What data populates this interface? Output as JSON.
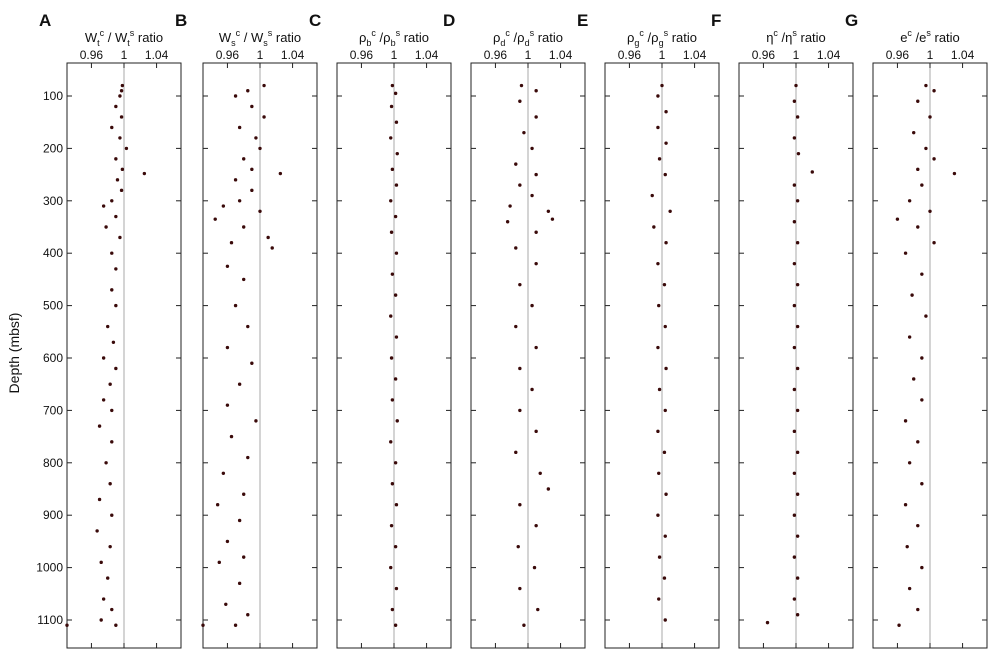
{
  "chart_data": {
    "type": "scatter",
    "ylabel": "Depth (mbsf)",
    "y_reversed": true,
    "ylim": [
      50,
      1125
    ],
    "yticks": [
      100,
      200,
      300,
      400,
      500,
      600,
      700,
      800,
      900,
      1000,
      1100
    ],
    "xlim": [
      0.93,
      1.07
    ],
    "xticks": [
      0.96,
      1,
      1.04
    ],
    "xtick_labels": [
      "0.96",
      "1",
      "1.04"
    ],
    "reference_line": 1,
    "point_color": "#3a0a0a",
    "panels": [
      {
        "letter": "A",
        "title": {
          "b1": "W",
          "sub1": "t",
          "sup1": "c",
          "mid": "/ W",
          "sub2": "t",
          "sup2": "s",
          "tail": " ratio"
        },
        "points": [
          [
            0.998,
            80
          ],
          [
            0.997,
            90
          ],
          [
            0.995,
            100
          ],
          [
            0.99,
            120
          ],
          [
            0.997,
            140
          ],
          [
            0.985,
            160
          ],
          [
            0.995,
            180
          ],
          [
            1.003,
            200
          ],
          [
            0.99,
            220
          ],
          [
            0.998,
            240
          ],
          [
            1.025,
            248
          ],
          [
            0.992,
            260
          ],
          [
            0.997,
            280
          ],
          [
            0.985,
            300
          ],
          [
            0.975,
            310
          ],
          [
            0.99,
            330
          ],
          [
            0.978,
            350
          ],
          [
            0.995,
            370
          ],
          [
            0.985,
            400
          ],
          [
            0.99,
            430
          ],
          [
            0.985,
            470
          ],
          [
            0.99,
            500
          ],
          [
            0.98,
            540
          ],
          [
            0.987,
            570
          ],
          [
            0.975,
            600
          ],
          [
            0.99,
            620
          ],
          [
            0.983,
            650
          ],
          [
            0.975,
            680
          ],
          [
            0.985,
            700
          ],
          [
            0.97,
            730
          ],
          [
            0.985,
            760
          ],
          [
            0.978,
            800
          ],
          [
            0.983,
            840
          ],
          [
            0.97,
            870
          ],
          [
            0.985,
            900
          ],
          [
            0.967,
            930
          ],
          [
            0.983,
            960
          ],
          [
            0.972,
            990
          ],
          [
            0.98,
            1020
          ],
          [
            0.975,
            1060
          ],
          [
            0.985,
            1080
          ],
          [
            0.972,
            1100
          ],
          [
            0.99,
            1110
          ],
          [
            0.93,
            1110
          ]
        ]
      },
      {
        "letter": "B",
        "title": {
          "b1": "W",
          "sub1": "s",
          "sup1": "c",
          "mid": "/ W",
          "sub2": "s",
          "sup2": "s",
          "tail": " ratio"
        },
        "points": [
          [
            1.005,
            80
          ],
          [
            0.985,
            90
          ],
          [
            0.97,
            100
          ],
          [
            0.99,
            120
          ],
          [
            1.005,
            140
          ],
          [
            0.975,
            160
          ],
          [
            0.995,
            180
          ],
          [
            1.0,
            200
          ],
          [
            0.98,
            220
          ],
          [
            0.99,
            240
          ],
          [
            1.025,
            248
          ],
          [
            0.97,
            260
          ],
          [
            0.99,
            280
          ],
          [
            0.975,
            300
          ],
          [
            0.955,
            310
          ],
          [
            1.0,
            320
          ],
          [
            0.945,
            335
          ],
          [
            0.98,
            350
          ],
          [
            1.01,
            370
          ],
          [
            0.965,
            380
          ],
          [
            1.015,
            390
          ],
          [
            0.96,
            425
          ],
          [
            0.98,
            450
          ],
          [
            0.97,
            500
          ],
          [
            0.985,
            540
          ],
          [
            0.96,
            580
          ],
          [
            0.99,
            610
          ],
          [
            0.975,
            650
          ],
          [
            0.96,
            690
          ],
          [
            0.995,
            720
          ],
          [
            0.965,
            750
          ],
          [
            0.985,
            790
          ],
          [
            0.955,
            820
          ],
          [
            0.98,
            860
          ],
          [
            0.948,
            880
          ],
          [
            0.975,
            910
          ],
          [
            0.96,
            950
          ],
          [
            0.98,
            980
          ],
          [
            0.95,
            990
          ],
          [
            0.975,
            1030
          ],
          [
            0.958,
            1070
          ],
          [
            0.985,
            1090
          ],
          [
            0.97,
            1110
          ],
          [
            0.93,
            1110
          ]
        ]
      },
      {
        "letter": "C",
        "title": {
          "b1": "ρ",
          "sub1": "b",
          "sup1": "c",
          "mid": "/ρ",
          "sub2": "b",
          "sup2": "s",
          "tail": " ratio"
        },
        "points": [
          [
            0.998,
            80
          ],
          [
            1.002,
            95
          ],
          [
            0.997,
            120
          ],
          [
            1.003,
            150
          ],
          [
            0.996,
            180
          ],
          [
            1.004,
            210
          ],
          [
            0.998,
            240
          ],
          [
            1.003,
            270
          ],
          [
            0.996,
            300
          ],
          [
            1.002,
            330
          ],
          [
            0.997,
            360
          ],
          [
            1.003,
            400
          ],
          [
            0.998,
            440
          ],
          [
            1.002,
            480
          ],
          [
            0.996,
            520
          ],
          [
            1.003,
            560
          ],
          [
            0.997,
            600
          ],
          [
            1.002,
            640
          ],
          [
            0.998,
            680
          ],
          [
            1.004,
            720
          ],
          [
            0.996,
            760
          ],
          [
            1.002,
            800
          ],
          [
            0.998,
            840
          ],
          [
            1.003,
            880
          ],
          [
            0.997,
            920
          ],
          [
            1.002,
            960
          ],
          [
            0.996,
            1000
          ],
          [
            1.003,
            1040
          ],
          [
            0.998,
            1080
          ],
          [
            1.002,
            1110
          ]
        ]
      },
      {
        "letter": "D",
        "title": {
          "b1": "ρ",
          "sub1": "d",
          "sup1": "c",
          "mid": "/ρ",
          "sub2": "d",
          "sup2": "s",
          "tail": " ratio"
        },
        "points": [
          [
            0.992,
            80
          ],
          [
            1.01,
            90
          ],
          [
            0.99,
            110
          ],
          [
            1.01,
            140
          ],
          [
            0.995,
            170
          ],
          [
            1.005,
            200
          ],
          [
            0.985,
            230
          ],
          [
            1.01,
            250
          ],
          [
            0.99,
            270
          ],
          [
            1.005,
            290
          ],
          [
            0.978,
            310
          ],
          [
            1.025,
            320
          ],
          [
            1.03,
            335
          ],
          [
            0.975,
            340
          ],
          [
            1.01,
            360
          ],
          [
            0.985,
            390
          ],
          [
            1.01,
            420
          ],
          [
            0.99,
            460
          ],
          [
            1.005,
            500
          ],
          [
            0.985,
            540
          ],
          [
            1.01,
            580
          ],
          [
            0.99,
            620
          ],
          [
            1.005,
            660
          ],
          [
            0.99,
            700
          ],
          [
            1.01,
            740
          ],
          [
            0.985,
            780
          ],
          [
            1.015,
            820
          ],
          [
            1.025,
            850
          ],
          [
            0.99,
            880
          ],
          [
            1.01,
            920
          ],
          [
            0.988,
            960
          ],
          [
            1.008,
            1000
          ],
          [
            0.99,
            1040
          ],
          [
            1.012,
            1080
          ],
          [
            0.995,
            1110
          ]
        ]
      },
      {
        "letter": "E",
        "title": {
          "b1": "ρ",
          "sub1": "g",
          "sup1": "c",
          "mid": "/ρ",
          "sub2": "g",
          "sup2": "s",
          "tail": " ratio"
        },
        "points": [
          [
            1.0,
            80
          ],
          [
            0.995,
            100
          ],
          [
            1.005,
            130
          ],
          [
            0.995,
            160
          ],
          [
            1.005,
            190
          ],
          [
            0.997,
            220
          ],
          [
            1.004,
            250
          ],
          [
            0.988,
            290
          ],
          [
            1.01,
            320
          ],
          [
            0.99,
            350
          ],
          [
            1.005,
            380
          ],
          [
            0.995,
            420
          ],
          [
            1.003,
            460
          ],
          [
            0.996,
            500
          ],
          [
            1.004,
            540
          ],
          [
            0.995,
            580
          ],
          [
            1.005,
            620
          ],
          [
            0.997,
            660
          ],
          [
            1.004,
            700
          ],
          [
            0.995,
            740
          ],
          [
            1.003,
            780
          ],
          [
            0.996,
            820
          ],
          [
            1.005,
            860
          ],
          [
            0.995,
            900
          ],
          [
            1.004,
            940
          ],
          [
            0.997,
            980
          ],
          [
            1.003,
            1020
          ],
          [
            0.996,
            1060
          ],
          [
            1.004,
            1100
          ]
        ]
      },
      {
        "letter": "F",
        "title": {
          "b1": "η",
          "sub1": "",
          "sup1": "c",
          "mid": "/η",
          "sub2": "",
          "sup2": "s",
          "tail": " ratio"
        },
        "points": [
          [
            1.0,
            80
          ],
          [
            0.998,
            110
          ],
          [
            1.002,
            140
          ],
          [
            0.998,
            180
          ],
          [
            1.003,
            210
          ],
          [
            1.02,
            245
          ],
          [
            0.998,
            270
          ],
          [
            1.002,
            300
          ],
          [
            0.998,
            340
          ],
          [
            1.002,
            380
          ],
          [
            0.998,
            420
          ],
          [
            1.002,
            460
          ],
          [
            0.998,
            500
          ],
          [
            1.002,
            540
          ],
          [
            0.998,
            580
          ],
          [
            1.002,
            620
          ],
          [
            0.998,
            660
          ],
          [
            1.002,
            700
          ],
          [
            0.998,
            740
          ],
          [
            1.002,
            780
          ],
          [
            0.998,
            820
          ],
          [
            1.002,
            860
          ],
          [
            0.998,
            900
          ],
          [
            1.002,
            940
          ],
          [
            0.998,
            980
          ],
          [
            1.002,
            1020
          ],
          [
            0.998,
            1060
          ],
          [
            1.002,
            1090
          ],
          [
            0.965,
            1105
          ]
        ]
      },
      {
        "letter": "G",
        "title": {
          "b1": "e",
          "sub1": "",
          "sup1": "c",
          "mid": "/e",
          "sub2": "",
          "sup2": "s",
          "tail": " ratio"
        },
        "points": [
          [
            0.995,
            80
          ],
          [
            1.005,
            90
          ],
          [
            0.985,
            110
          ],
          [
            1.0,
            140
          ],
          [
            0.98,
            170
          ],
          [
            0.995,
            200
          ],
          [
            1.005,
            220
          ],
          [
            0.985,
            240
          ],
          [
            1.03,
            248
          ],
          [
            0.99,
            270
          ],
          [
            0.975,
            300
          ],
          [
            1.0,
            320
          ],
          [
            0.96,
            335
          ],
          [
            0.985,
            350
          ],
          [
            1.005,
            380
          ],
          [
            0.97,
            400
          ],
          [
            0.99,
            440
          ],
          [
            0.978,
            480
          ],
          [
            0.995,
            520
          ],
          [
            0.975,
            560
          ],
          [
            0.99,
            600
          ],
          [
            0.98,
            640
          ],
          [
            0.99,
            680
          ],
          [
            0.97,
            720
          ],
          [
            0.985,
            760
          ],
          [
            0.975,
            800
          ],
          [
            0.99,
            840
          ],
          [
            0.97,
            880
          ],
          [
            0.985,
            920
          ],
          [
            0.972,
            960
          ],
          [
            0.99,
            1000
          ],
          [
            0.975,
            1040
          ],
          [
            0.985,
            1080
          ],
          [
            0.962,
            1110
          ]
        ]
      }
    ]
  }
}
